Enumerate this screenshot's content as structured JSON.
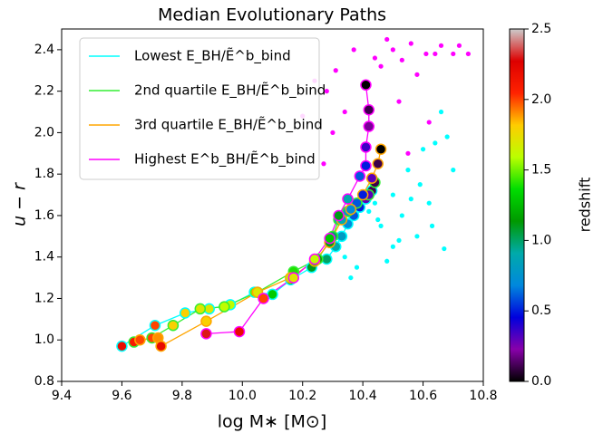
{
  "chart_data": {
    "type": "line",
    "title": "Median Evolutionary Paths",
    "xlabel": "log M∗ [M⊙]",
    "ylabel": "u − r",
    "xlim": [
      9.4,
      10.8
    ],
    "xticks": [
      9.4,
      9.6,
      9.8,
      {
        "value": 10,
        "label": "10.0"
      },
      10.2,
      10.4,
      10.6,
      10.8
    ],
    "ylim": [
      0.8,
      2.5
    ],
    "yticks": [
      0.8,
      {
        "value": 1,
        "label": "1.0"
      },
      1.2,
      1.4,
      1.6,
      1.8,
      {
        "value": 2,
        "label": "2.0"
      },
      2.2,
      2.4
    ],
    "legend": "upper left",
    "colorbar": {
      "label": "redshift",
      "lim": [
        0,
        2.5
      ],
      "ticks": [
        {
          "value": 0,
          "label": "0.0"
        },
        0.5,
        {
          "value": 1,
          "label": "1.0"
        },
        1.5,
        {
          "value": 2,
          "label": "2.0"
        },
        2.5
      ],
      "colors": [
        "#000000",
        "#8800aa",
        "#0000dd",
        "#0088dd",
        "#00aaaa",
        "#009900",
        "#00dd00",
        "#bbff00",
        "#ffcc00",
        "#ff2200",
        "#dd0000",
        "#cccccc"
      ]
    },
    "series": [
      {
        "name": "Lowest E_BH/Ẽ^b_bind",
        "color": "#00ffff",
        "x": [
          9.6,
          9.71,
          9.81,
          9.89,
          9.96,
          10.04,
          10.1,
          10.16,
          10.23,
          10.28,
          10.31,
          10.33,
          10.35,
          10.37,
          10.39,
          10.41,
          10.43
        ],
        "y": [
          0.97,
          1.07,
          1.13,
          1.15,
          1.17,
          1.23,
          1.22,
          1.29,
          1.35,
          1.39,
          1.45,
          1.5,
          1.56,
          1.6,
          1.64,
          1.68,
          1.72
        ],
        "z": [
          2.2,
          2.0,
          1.8,
          1.7,
          1.6,
          1.5,
          1.3,
          1.2,
          1.1,
          1.0,
          0.9,
          0.8,
          0.7,
          0.6,
          0.5,
          0.3,
          0.1
        ]
      },
      {
        "name": "2nd quartile E_BH/Ẽ^b_bind",
        "color": "#33ee33",
        "x": [
          9.64,
          9.7,
          9.77,
          9.86,
          9.94,
          10.05,
          10.17,
          10.25,
          10.3,
          10.32,
          10.35,
          10.38,
          10.42,
          10.44
        ],
        "y": [
          0.99,
          1.01,
          1.07,
          1.15,
          1.16,
          1.23,
          1.33,
          1.39,
          1.5,
          1.58,
          1.62,
          1.66,
          1.7,
          1.76
        ],
        "z": [
          2.1,
          2.0,
          1.8,
          1.7,
          1.6,
          1.5,
          1.4,
          1.2,
          1.0,
          0.9,
          0.8,
          0.6,
          0.3,
          0.1
        ]
      },
      {
        "name": "3rd quartile E_BH/Ẽ^b_bind",
        "color": "#ffa500",
        "x": [
          9.66,
          9.72,
          9.73,
          9.88,
          10.05,
          10.16,
          10.24,
          10.29,
          10.33,
          10.36,
          10.4,
          10.43,
          10.45,
          10.46
        ],
        "y": [
          1.0,
          1.01,
          0.97,
          1.09,
          1.23,
          1.3,
          1.38,
          1.47,
          1.58,
          1.63,
          1.7,
          1.78,
          1.85,
          1.92
        ],
        "z": [
          2.0,
          1.9,
          2.2,
          1.8,
          1.7,
          1.6,
          1.3,
          1.1,
          0.9,
          0.7,
          0.5,
          0.3,
          0.1,
          0.0
        ]
      },
      {
        "name": "Highest E^b_BH/Ẽ^b_bind",
        "color": "#ff00ff",
        "x": [
          9.88,
          9.99,
          10.07,
          10.17,
          10.24,
          10.29,
          10.32,
          10.35,
          10.39,
          10.41,
          10.41,
          10.42,
          10.42,
          10.41
        ],
        "y": [
          1.03,
          1.04,
          1.2,
          1.3,
          1.39,
          1.49,
          1.6,
          1.68,
          1.79,
          1.84,
          1.93,
          2.03,
          2.11,
          2.23
        ],
        "z": [
          2.3,
          2.2,
          2.0,
          1.7,
          1.6,
          1.3,
          1.1,
          0.9,
          0.6,
          0.5,
          0.35,
          0.2,
          0.1,
          0.0
        ]
      }
    ],
    "points": [
      {
        "color": "#00ffff",
        "x": [
          10.3,
          10.34,
          10.38,
          10.42,
          10.46,
          10.5,
          10.53,
          10.55,
          10.58,
          10.6,
          10.62,
          10.64,
          10.66,
          10.68,
          10.7,
          10.48,
          10.52,
          10.45,
          10.36,
          10.56,
          10.63,
          10.5,
          10.44,
          10.59,
          10.67
        ],
        "y": [
          1.47,
          1.4,
          1.35,
          1.62,
          1.55,
          1.7,
          1.6,
          1.82,
          1.5,
          1.92,
          1.66,
          1.95,
          2.1,
          1.98,
          1.82,
          1.38,
          1.48,
          1.58,
          1.3,
          1.68,
          1.55,
          1.45,
          1.66,
          1.75,
          1.44
        ]
      },
      {
        "color": "#ff00ff",
        "x": [
          10.2,
          10.24,
          10.28,
          10.31,
          10.34,
          10.37,
          10.44,
          10.46,
          10.48,
          10.5,
          10.53,
          10.56,
          10.58,
          10.61,
          10.64,
          10.66,
          10.7,
          10.72,
          10.75,
          10.27,
          10.3,
          10.52,
          10.55,
          10.62
        ],
        "y": [
          2.08,
          2.25,
          2.2,
          2.3,
          2.1,
          2.4,
          2.36,
          2.32,
          2.45,
          2.4,
          2.35,
          2.43,
          2.28,
          2.38,
          2.38,
          2.42,
          2.38,
          2.42,
          2.38,
          1.85,
          2.0,
          2.15,
          1.9,
          2.05
        ]
      }
    ]
  }
}
